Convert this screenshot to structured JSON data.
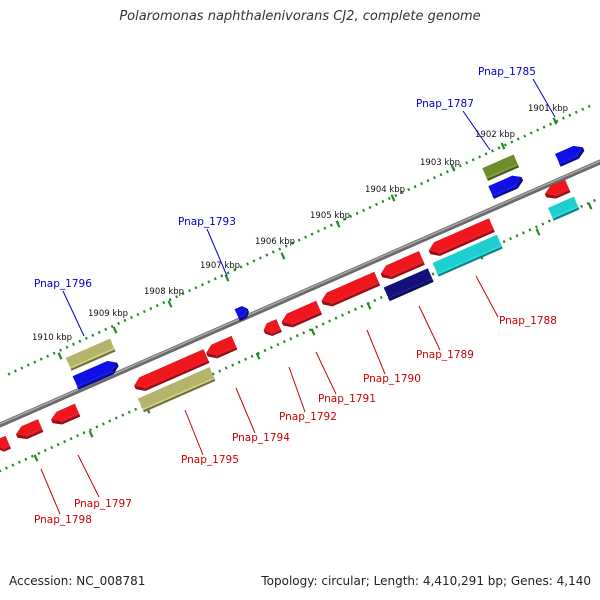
{
  "title": "Polaromonas naphthalenivorans CJ2, complete genome",
  "footer": {
    "accession": "Accession: NC_008781",
    "topology": "Topology: circular; Length: 4,410,291 bp; Genes: 4,140"
  },
  "colors": {
    "backbone": "#808080",
    "tick": "#228B22",
    "forward_label": "#0000CC",
    "reverse_label": "#CC0000",
    "red": "#F0161E",
    "blue": "#1010E6",
    "olive": "#6E8C2A",
    "khaki": "#B5B46A",
    "navy": "#14107A",
    "cyan": "#1ECFD0"
  },
  "scale_labels": [
    "1901 kbp",
    "1902 kbp",
    "1903 kbp",
    "1904 kbp",
    "1905 kbp",
    "1906 kbp",
    "1907 kbp",
    "1908 kbp",
    "1909 kbp",
    "1910 kbp"
  ],
  "gene_labels": {
    "forward": [
      "Pnap_1785",
      "Pnap_1787",
      "Pnap_1793",
      "Pnap_1796"
    ],
    "reverse": [
      "Pnap_1788",
      "Pnap_1789",
      "Pnap_1790",
      "Pnap_1791",
      "Pnap_1792",
      "Pnap_1794",
      "Pnap_1795",
      "Pnap_1797",
      "Pnap_1798"
    ]
  }
}
